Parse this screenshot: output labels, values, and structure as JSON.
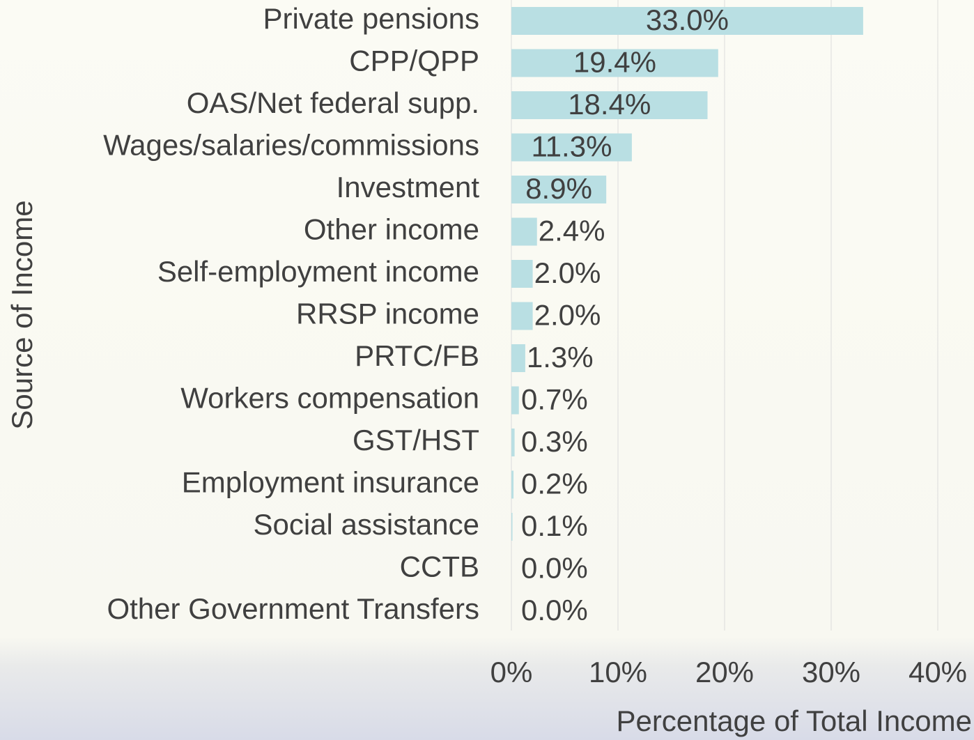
{
  "chart_data": {
    "type": "bar",
    "orientation": "horizontal",
    "x_label": "Percentage of Total Income",
    "y_label": "Source of Income",
    "categories": [
      "Private pensions",
      "CPP/QPP",
      "OAS/Net federal supp.",
      "Wages/salaries/commissions",
      "Investment",
      "Other income",
      "Self-employment income",
      "RRSP income",
      "PRTC/FB",
      "Workers compensation",
      "GST/HST",
      "Employment insurance",
      "Social assistance",
      "CCTB",
      "Other Government Transfers"
    ],
    "values": [
      33.0,
      19.4,
      18.4,
      11.3,
      8.9,
      2.4,
      2.0,
      2.0,
      1.3,
      0.7,
      0.3,
      0.2,
      0.1,
      0.0,
      0.0
    ],
    "value_labels": [
      "33.0%",
      "19.4%",
      "18.4%",
      "11.3%",
      "8.9%",
      "2.4%",
      "2.0%",
      "2.0%",
      "1.3%",
      "0.7%",
      "0.3%",
      "0.2%",
      "0.1%",
      "0.0%",
      "0.0%"
    ],
    "color": "#b9dfe3",
    "xlim": [
      0,
      42
    ],
    "xticks": [
      {
        "value": 0,
        "label": "0%"
      },
      {
        "value": 10,
        "label": "10%"
      },
      {
        "value": 20,
        "label": "20%"
      },
      {
        "value": 30,
        "label": "30%"
      },
      {
        "value": 40,
        "label": "40%"
      }
    ],
    "grid": true
  }
}
